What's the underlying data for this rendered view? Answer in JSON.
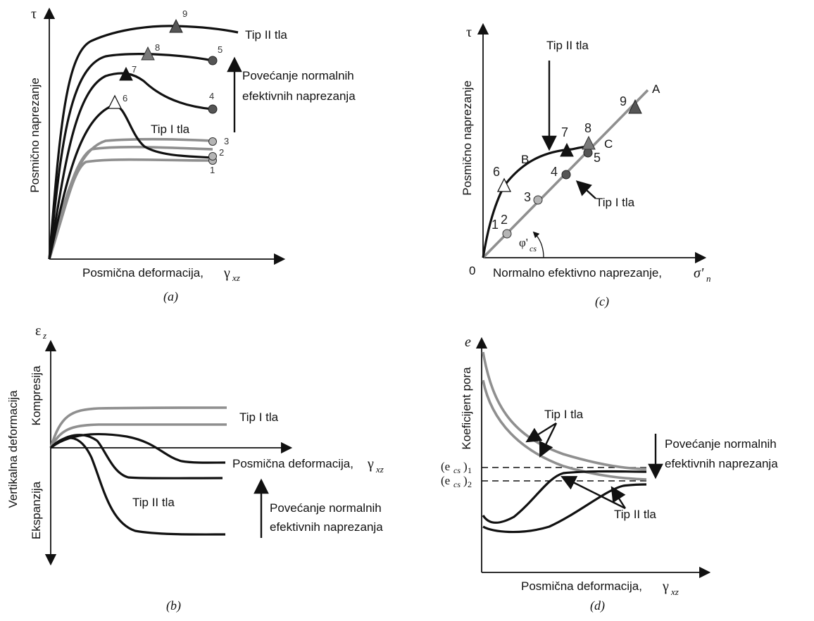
{
  "panel_a": {
    "caption": "(a)",
    "y_symbol": "τ",
    "y_label": "Posmično naprezanje",
    "x_label": "Posmična deformacija,",
    "x_symbol": "γ",
    "x_symbol_sub": "xz",
    "curve_label_type2": "Tip II tla",
    "curve_label_type1": "Tip I tla",
    "arrow_text_line1": "Povećanje normalnih",
    "arrow_text_line2": "efektivnih naprezanja",
    "point_numbers": [
      "1",
      "2",
      "3",
      "4",
      "5",
      "6",
      "7",
      "8",
      "9"
    ]
  },
  "panel_b": {
    "caption": "(b)",
    "y_symbol": "ε",
    "y_symbol_sub": "z",
    "y_label": "Vertikalna deformacija",
    "compression_label": "Kompresija",
    "expansion_label": "Ekspanzija",
    "x_label": "Posmična deformacija,",
    "x_symbol": "γ",
    "x_symbol_sub": "xz",
    "curve_label_type1": "Tip I tla",
    "curve_label_type2": "Tip II tla",
    "arrow_text_line1": "Povećanje normalnih",
    "arrow_text_line2": "efektivnih naprezanja"
  },
  "panel_c": {
    "caption": "(c)",
    "y_symbol": "τ",
    "y_label": "Posmično naprezanje",
    "x_label": "Normalno efektivno naprezanje,",
    "x_symbol": "σ'",
    "x_symbol_sub": "n",
    "origin_label": "0",
    "angle_symbol": "φ'",
    "angle_sub": "cs",
    "line_label_a": "A",
    "line_label_b": "B",
    "line_label_c": "C",
    "label_type2": "Tip II tla",
    "label_type1": "Tip I tla",
    "point_numbers": [
      "1",
      "2",
      "3",
      "4",
      "5",
      "6",
      "7",
      "8",
      "9"
    ]
  },
  "panel_d": {
    "caption": "(d)",
    "y_symbol": "e",
    "y_label": "Koeficijent pora",
    "x_label": "Posmična deformacija,",
    "x_symbol": "γ",
    "x_symbol_sub": "xz",
    "ecs1_label": "(e",
    "ecs1_sub": "cs",
    "ecs1_close": ")",
    "ecs1_index": "1",
    "ecs2_label": "(e",
    "ecs2_sub": "cs",
    "ecs2_close": ")",
    "ecs2_index": "2",
    "label_type1": "Tip I tla",
    "label_type2": "Tip II tla",
    "arrow_text_line1": "Povećanje normalnih",
    "arrow_text_line2": "efektivnih naprezanja"
  },
  "colors": {
    "black_curve": "#111111",
    "gray_curve": "#8f8f8f",
    "marker_dark": "#555555",
    "marker_mid": "#7a7a7a",
    "marker_light": "#b5b5b5",
    "marker_open": "#ffffff"
  }
}
